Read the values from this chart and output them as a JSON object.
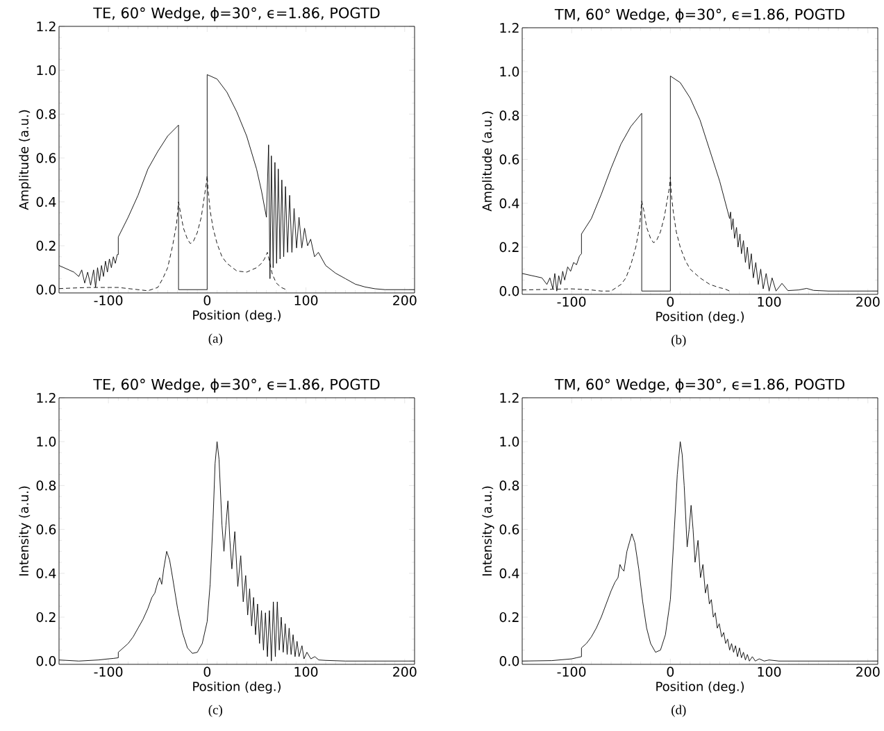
{
  "chart_data": [
    {
      "type": "line",
      "title": "TE, 60° Wedge, ϕ=30°, ϵ=1.86, POGTD",
      "xlabel": "Position (deg.)",
      "ylabel": "Amplitude (a.u.)",
      "annotations": [
        "(a)"
      ],
      "xlim": [
        -150,
        210
      ],
      "ylim": [
        -0.015,
        1.2
      ],
      "xticks": [
        -100,
        0,
        100,
        200
      ],
      "yticks": [
        {
          "value": 0,
          "label": "0.0"
        },
        {
          "value": 0.2,
          "label": "0.2"
        },
        {
          "value": 0.4,
          "label": "0.4"
        },
        {
          "value": 0.6,
          "label": "0.6"
        },
        {
          "value": 0.8,
          "label": "0.8"
        },
        {
          "value": 1.0,
          "label": "1.0"
        },
        {
          "value": 1.2,
          "label": "1.2"
        }
      ],
      "series": [
        {
          "color": "#000000",
          "line_style": "solid",
          "x": [
            -150,
            -140,
            -135,
            -130,
            -127,
            -124,
            -121,
            -118,
            -115,
            -113,
            -111,
            -109,
            -107,
            -105,
            -103,
            -101,
            -99,
            -97,
            -95,
            -93,
            -91,
            -90,
            -90,
            -80,
            -70,
            -60,
            -50,
            -40,
            -29,
            -29,
            -10,
            0,
            0,
            10,
            20,
            30,
            40,
            50,
            55,
            60,
            62.2,
            63.6,
            65,
            66.8,
            68.6,
            70.3,
            72,
            73.8,
            75.6,
            77.5,
            79.3,
            81.4,
            83.5,
            85.8,
            88,
            90.5,
            93,
            95.8,
            98.6,
            101.7,
            104.8,
            108.7,
            112.6,
            120,
            130,
            140,
            150,
            160,
            170,
            180,
            210
          ],
          "values": [
            0.11,
            0.09,
            0.08,
            0.06,
            0.09,
            0.03,
            0.08,
            0.02,
            0.09,
            0.01,
            0.1,
            0.04,
            0.11,
            0.06,
            0.13,
            0.08,
            0.14,
            0.1,
            0.15,
            0.12,
            0.16,
            0.16,
            0.24,
            0.33,
            0.43,
            0.55,
            0.63,
            0.7,
            0.75,
            0,
            0,
            0,
            0.98,
            0.96,
            0.9,
            0.81,
            0.7,
            0.55,
            0.45,
            0.33,
            0.66,
            0.05,
            0.61,
            0.1,
            0.58,
            0.12,
            0.55,
            0.14,
            0.5,
            0.15,
            0.47,
            0.17,
            0.43,
            0.17,
            0.37,
            0.19,
            0.33,
            0.19,
            0.28,
            0.2,
            0.23,
            0.15,
            0.17,
            0.11,
            0.075,
            0.05,
            0.025,
            0.012,
            0.004,
            0,
            0
          ]
        },
        {
          "color": "#000000",
          "line_style": "dashed",
          "x": [
            -150,
            -120,
            -100,
            -90,
            -80,
            -70,
            -60,
            -50,
            -45,
            -40,
            -35,
            -31,
            -29,
            -27,
            -24,
            -20,
            -17,
            -14,
            -10,
            -6,
            -3,
            -1,
            0,
            1,
            3,
            6,
            10,
            15,
            20,
            30,
            40,
            50,
            55,
            58,
            60,
            61,
            63,
            66,
            70,
            75,
            80
          ],
          "values": [
            0.005,
            0.01,
            0.01,
            0.01,
            0.005,
            0.0,
            -0.005,
            0.01,
            0.05,
            0.1,
            0.2,
            0.3,
            0.4,
            0.35,
            0.28,
            0.23,
            0.21,
            0.22,
            0.26,
            0.33,
            0.42,
            0.48,
            0.52,
            0.45,
            0.36,
            0.28,
            0.21,
            0.15,
            0.12,
            0.085,
            0.08,
            0.1,
            0.12,
            0.14,
            0.16,
            0.17,
            0.13,
            0.07,
            0.03,
            0.01,
            0.0
          ]
        }
      ]
    },
    {
      "type": "line",
      "title": "TM, 60° Wedge, ϕ=30°, ϵ=1.86, POGTD",
      "xlabel": "Position (deg.)",
      "ylabel": "Amplitude (a.u.)",
      "annotations": [
        "(b)"
      ],
      "xlim": [
        -150,
        210
      ],
      "ylim": [
        -0.015,
        1.2
      ],
      "xticks": [
        -100,
        0,
        100,
        200
      ],
      "yticks": [
        {
          "value": 0,
          "label": "0.0"
        },
        {
          "value": 0.2,
          "label": "0.2"
        },
        {
          "value": 0.4,
          "label": "0.4"
        },
        {
          "value": 0.6,
          "label": "0.6"
        },
        {
          "value": 0.8,
          "label": "0.8"
        },
        {
          "value": 1.0,
          "label": "1.0"
        },
        {
          "value": 1.2,
          "label": "1.2"
        }
      ],
      "series": [
        {
          "color": "#000000",
          "line_style": "solid",
          "x": [
            -150,
            -140,
            -130,
            -125,
            -122,
            -119,
            -117,
            -115,
            -113,
            -111,
            -109,
            -107,
            -104,
            -101,
            -98,
            -95,
            -92,
            -90,
            -90,
            -80,
            -70,
            -60,
            -50,
            -40,
            -29,
            -29,
            0,
            0,
            10,
            20,
            30,
            40,
            50,
            60,
            61,
            62,
            63.5,
            65,
            67,
            68.5,
            70.5,
            72,
            74,
            76,
            78,
            80,
            82,
            84,
            86.5,
            89,
            91.5,
            94,
            97,
            100,
            103,
            107,
            113,
            119,
            130,
            138,
            145,
            160,
            210
          ],
          "values": [
            0.08,
            0.07,
            0.06,
            0.03,
            0.06,
            0.01,
            0.08,
            0.0,
            0.07,
            0.03,
            0.09,
            0.05,
            0.11,
            0.09,
            0.13,
            0.12,
            0.16,
            0.17,
            0.26,
            0.33,
            0.44,
            0.56,
            0.67,
            0.75,
            0.81,
            0,
            0,
            0.98,
            0.95,
            0.88,
            0.78,
            0.64,
            0.5,
            0.33,
            0.36,
            0.28,
            0.33,
            0.24,
            0.29,
            0.2,
            0.26,
            0.17,
            0.23,
            0.13,
            0.2,
            0.1,
            0.17,
            0.06,
            0.13,
            0.03,
            0.1,
            0.01,
            0.08,
            0.0,
            0.06,
            0,
            0.035,
            0.002,
            0.005,
            0.012,
            0.003,
            0,
            0
          ]
        },
        {
          "color": "#000000",
          "line_style": "dashed",
          "x": [
            -150,
            -100,
            -80,
            -70,
            -60,
            -50,
            -45,
            -40,
            -35,
            -31,
            -29,
            -27,
            -24,
            -20,
            -17,
            -14,
            -10,
            -6,
            -3,
            -1,
            0,
            1,
            3,
            6,
            10,
            15,
            20,
            30,
            40,
            50,
            55,
            60
          ],
          "values": [
            0.005,
            0.01,
            0.005,
            0.0,
            0.0,
            0.03,
            0.06,
            0.12,
            0.2,
            0.3,
            0.41,
            0.37,
            0.29,
            0.24,
            0.22,
            0.23,
            0.27,
            0.34,
            0.42,
            0.47,
            0.52,
            0.44,
            0.36,
            0.27,
            0.2,
            0.14,
            0.1,
            0.06,
            0.03,
            0.015,
            0.01,
            0
          ]
        }
      ]
    },
    {
      "type": "line",
      "title": "TE, 60° Wedge, ϕ=30°, ϵ=1.86, POGTD",
      "xlabel": "Position (deg.)",
      "ylabel": "Intensity (a.u.)",
      "annotations": [
        "(c)"
      ],
      "xlim": [
        -150,
        210
      ],
      "ylim": [
        -0.015,
        1.2
      ],
      "xticks": [
        -100,
        0,
        100,
        200
      ],
      "yticks": [
        {
          "value": 0,
          "label": "0.0"
        },
        {
          "value": 0.2,
          "label": "0.2"
        },
        {
          "value": 0.4,
          "label": "0.4"
        },
        {
          "value": 0.6,
          "label": "0.6"
        },
        {
          "value": 0.8,
          "label": "0.8"
        },
        {
          "value": 1.0,
          "label": "1.0"
        },
        {
          "value": 1.2,
          "label": "1.2"
        }
      ],
      "series": [
        {
          "color": "#000000",
          "line_style": "solid",
          "x": [
            -150,
            -130,
            -110,
            -100,
            -95,
            -90,
            -90,
            -85,
            -80,
            -75,
            -70,
            -65,
            -60,
            -56,
            -53,
            -50,
            -48,
            -46,
            -44,
            -41,
            -38,
            -35,
            -30,
            -25,
            -20,
            -15,
            -10,
            -5,
            0,
            3,
            6,
            8,
            10,
            12,
            15,
            17,
            19,
            21,
            23,
            25,
            28,
            31,
            34,
            36.5,
            39,
            41,
            43,
            45,
            47,
            49,
            51,
            53,
            55,
            57,
            59,
            61,
            63,
            65,
            67,
            69,
            71,
            73,
            75,
            77,
            79,
            81,
            83,
            85,
            87,
            89,
            91,
            93,
            96,
            98,
            101,
            105,
            109,
            113,
            120,
            140,
            210
          ],
          "values": [
            0.005,
            0.0,
            0.005,
            0.01,
            0.012,
            0.015,
            0.04,
            0.06,
            0.08,
            0.11,
            0.15,
            0.19,
            0.24,
            0.29,
            0.31,
            0.36,
            0.38,
            0.35,
            0.42,
            0.5,
            0.46,
            0.38,
            0.24,
            0.13,
            0.06,
            0.035,
            0.04,
            0.08,
            0.18,
            0.35,
            0.65,
            0.9,
            1.0,
            0.92,
            0.62,
            0.5,
            0.62,
            0.73,
            0.55,
            0.42,
            0.59,
            0.34,
            0.48,
            0.27,
            0.39,
            0.21,
            0.33,
            0.16,
            0.29,
            0.12,
            0.26,
            0.08,
            0.23,
            0.05,
            0.22,
            0.02,
            0.23,
            0.0,
            0.27,
            0.02,
            0.27,
            0.05,
            0.2,
            0.04,
            0.17,
            0.03,
            0.15,
            0.03,
            0.12,
            0.02,
            0.09,
            0.02,
            0.07,
            0.01,
            0.04,
            0.01,
            0.02,
            0.005,
            0.003,
            0,
            0
          ]
        }
      ]
    },
    {
      "type": "line",
      "title": "TM, 60° Wedge, ϕ=30°, ϵ=1.86, POGTD",
      "xlabel": "Position (deg.)",
      "ylabel": "Intensity (a.u.)",
      "annotations": [
        "(d)"
      ],
      "xlim": [
        -150,
        210
      ],
      "ylim": [
        -0.015,
        1.2
      ],
      "xticks": [
        -100,
        0,
        100,
        200
      ],
      "yticks": [
        {
          "value": 0,
          "label": "0.0"
        },
        {
          "value": 0.2,
          "label": "0.2"
        },
        {
          "value": 0.4,
          "label": "0.4"
        },
        {
          "value": 0.6,
          "label": "0.6"
        },
        {
          "value": 0.8,
          "label": "0.8"
        },
        {
          "value": 1.0,
          "label": "1.0"
        },
        {
          "value": 1.2,
          "label": "1.2"
        }
      ],
      "series": [
        {
          "color": "#000000",
          "line_style": "solid",
          "x": [
            -150,
            -120,
            -100,
            -95,
            -90,
            -90,
            -85,
            -80,
            -75,
            -70,
            -65,
            -60,
            -56,
            -53,
            -51,
            -49,
            -47,
            -44,
            -39,
            -36,
            -32,
            -28,
            -24,
            -20,
            -15,
            -10,
            -5,
            0,
            4,
            7,
            10,
            12,
            14,
            17,
            19,
            21,
            23,
            25,
            28,
            30.5,
            33,
            35.5,
            37.5,
            39.5,
            41.5,
            43.5,
            45.5,
            47.5,
            49.5,
            52,
            54,
            56,
            58,
            60,
            62,
            64,
            66,
            68,
            70,
            72,
            74,
            76,
            78,
            80,
            83,
            86,
            90,
            95,
            100,
            110,
            210
          ],
          "values": [
            0.0,
            0.002,
            0.01,
            0.015,
            0.02,
            0.06,
            0.08,
            0.11,
            0.15,
            0.2,
            0.26,
            0.32,
            0.36,
            0.38,
            0.44,
            0.42,
            0.41,
            0.5,
            0.58,
            0.54,
            0.42,
            0.27,
            0.15,
            0.08,
            0.04,
            0.05,
            0.12,
            0.28,
            0.6,
            0.85,
            1.0,
            0.94,
            0.8,
            0.52,
            0.6,
            0.71,
            0.6,
            0.45,
            0.55,
            0.38,
            0.44,
            0.31,
            0.35,
            0.26,
            0.28,
            0.2,
            0.22,
            0.15,
            0.17,
            0.11,
            0.13,
            0.08,
            0.1,
            0.05,
            0.08,
            0.04,
            0.07,
            0.02,
            0.06,
            0.015,
            0.04,
            0.005,
            0.03,
            0.0,
            0.02,
            0,
            0.01,
            0,
            0.005,
            0,
            0
          ]
        }
      ]
    }
  ]
}
